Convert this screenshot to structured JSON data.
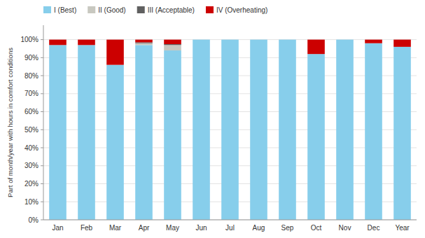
{
  "chart_data": {
    "type": "bar",
    "stacked": true,
    "y_label": "Part of month/year with hours in comfort conditions",
    "categories": [
      "Jan",
      "Feb",
      "Mar",
      "Apr",
      "May",
      "Jun",
      "Jul",
      "Aug",
      "Sep",
      "Oct",
      "Nov",
      "Dec",
      "Year"
    ],
    "series": [
      {
        "name": "I (Best)",
        "color": "#87CEEB",
        "values": [
          97,
          97,
          86,
          97,
          94,
          100,
          100,
          100,
          100,
          92,
          100,
          98,
          96
        ]
      },
      {
        "name": "II (Good)",
        "color": "#C8C8C0",
        "values": [
          0,
          0,
          0,
          1,
          3,
          0,
          0,
          0,
          0,
          0,
          0,
          0,
          0
        ]
      },
      {
        "name": "III (Acceptable)",
        "color": "#606060",
        "values": [
          0,
          0,
          0,
          0.5,
          0.5,
          0,
          0,
          0,
          0,
          0,
          0,
          0,
          0
        ]
      },
      {
        "name": "IV (Overheating)",
        "color": "#CC0000",
        "values": [
          3,
          3,
          14,
          1.5,
          2.5,
          0,
          0,
          0,
          0,
          8,
          0,
          2,
          4
        ]
      }
    ],
    "ylim": [
      0,
      108
    ],
    "yticks": [
      {
        "value": 0,
        "label": "0%"
      },
      {
        "value": 10,
        "label": "10%"
      },
      {
        "value": 20,
        "label": "20%"
      },
      {
        "value": 30,
        "label": "30%"
      },
      {
        "value": 40,
        "label": "40%"
      },
      {
        "value": 50,
        "label": "50%"
      },
      {
        "value": 60,
        "label": "60%"
      },
      {
        "value": 70,
        "label": "70%"
      },
      {
        "value": 80,
        "label": "80%"
      },
      {
        "value": 90,
        "label": "90%"
      },
      {
        "value": 100,
        "label": "100%"
      }
    ],
    "grid": true,
    "legend": "top"
  }
}
